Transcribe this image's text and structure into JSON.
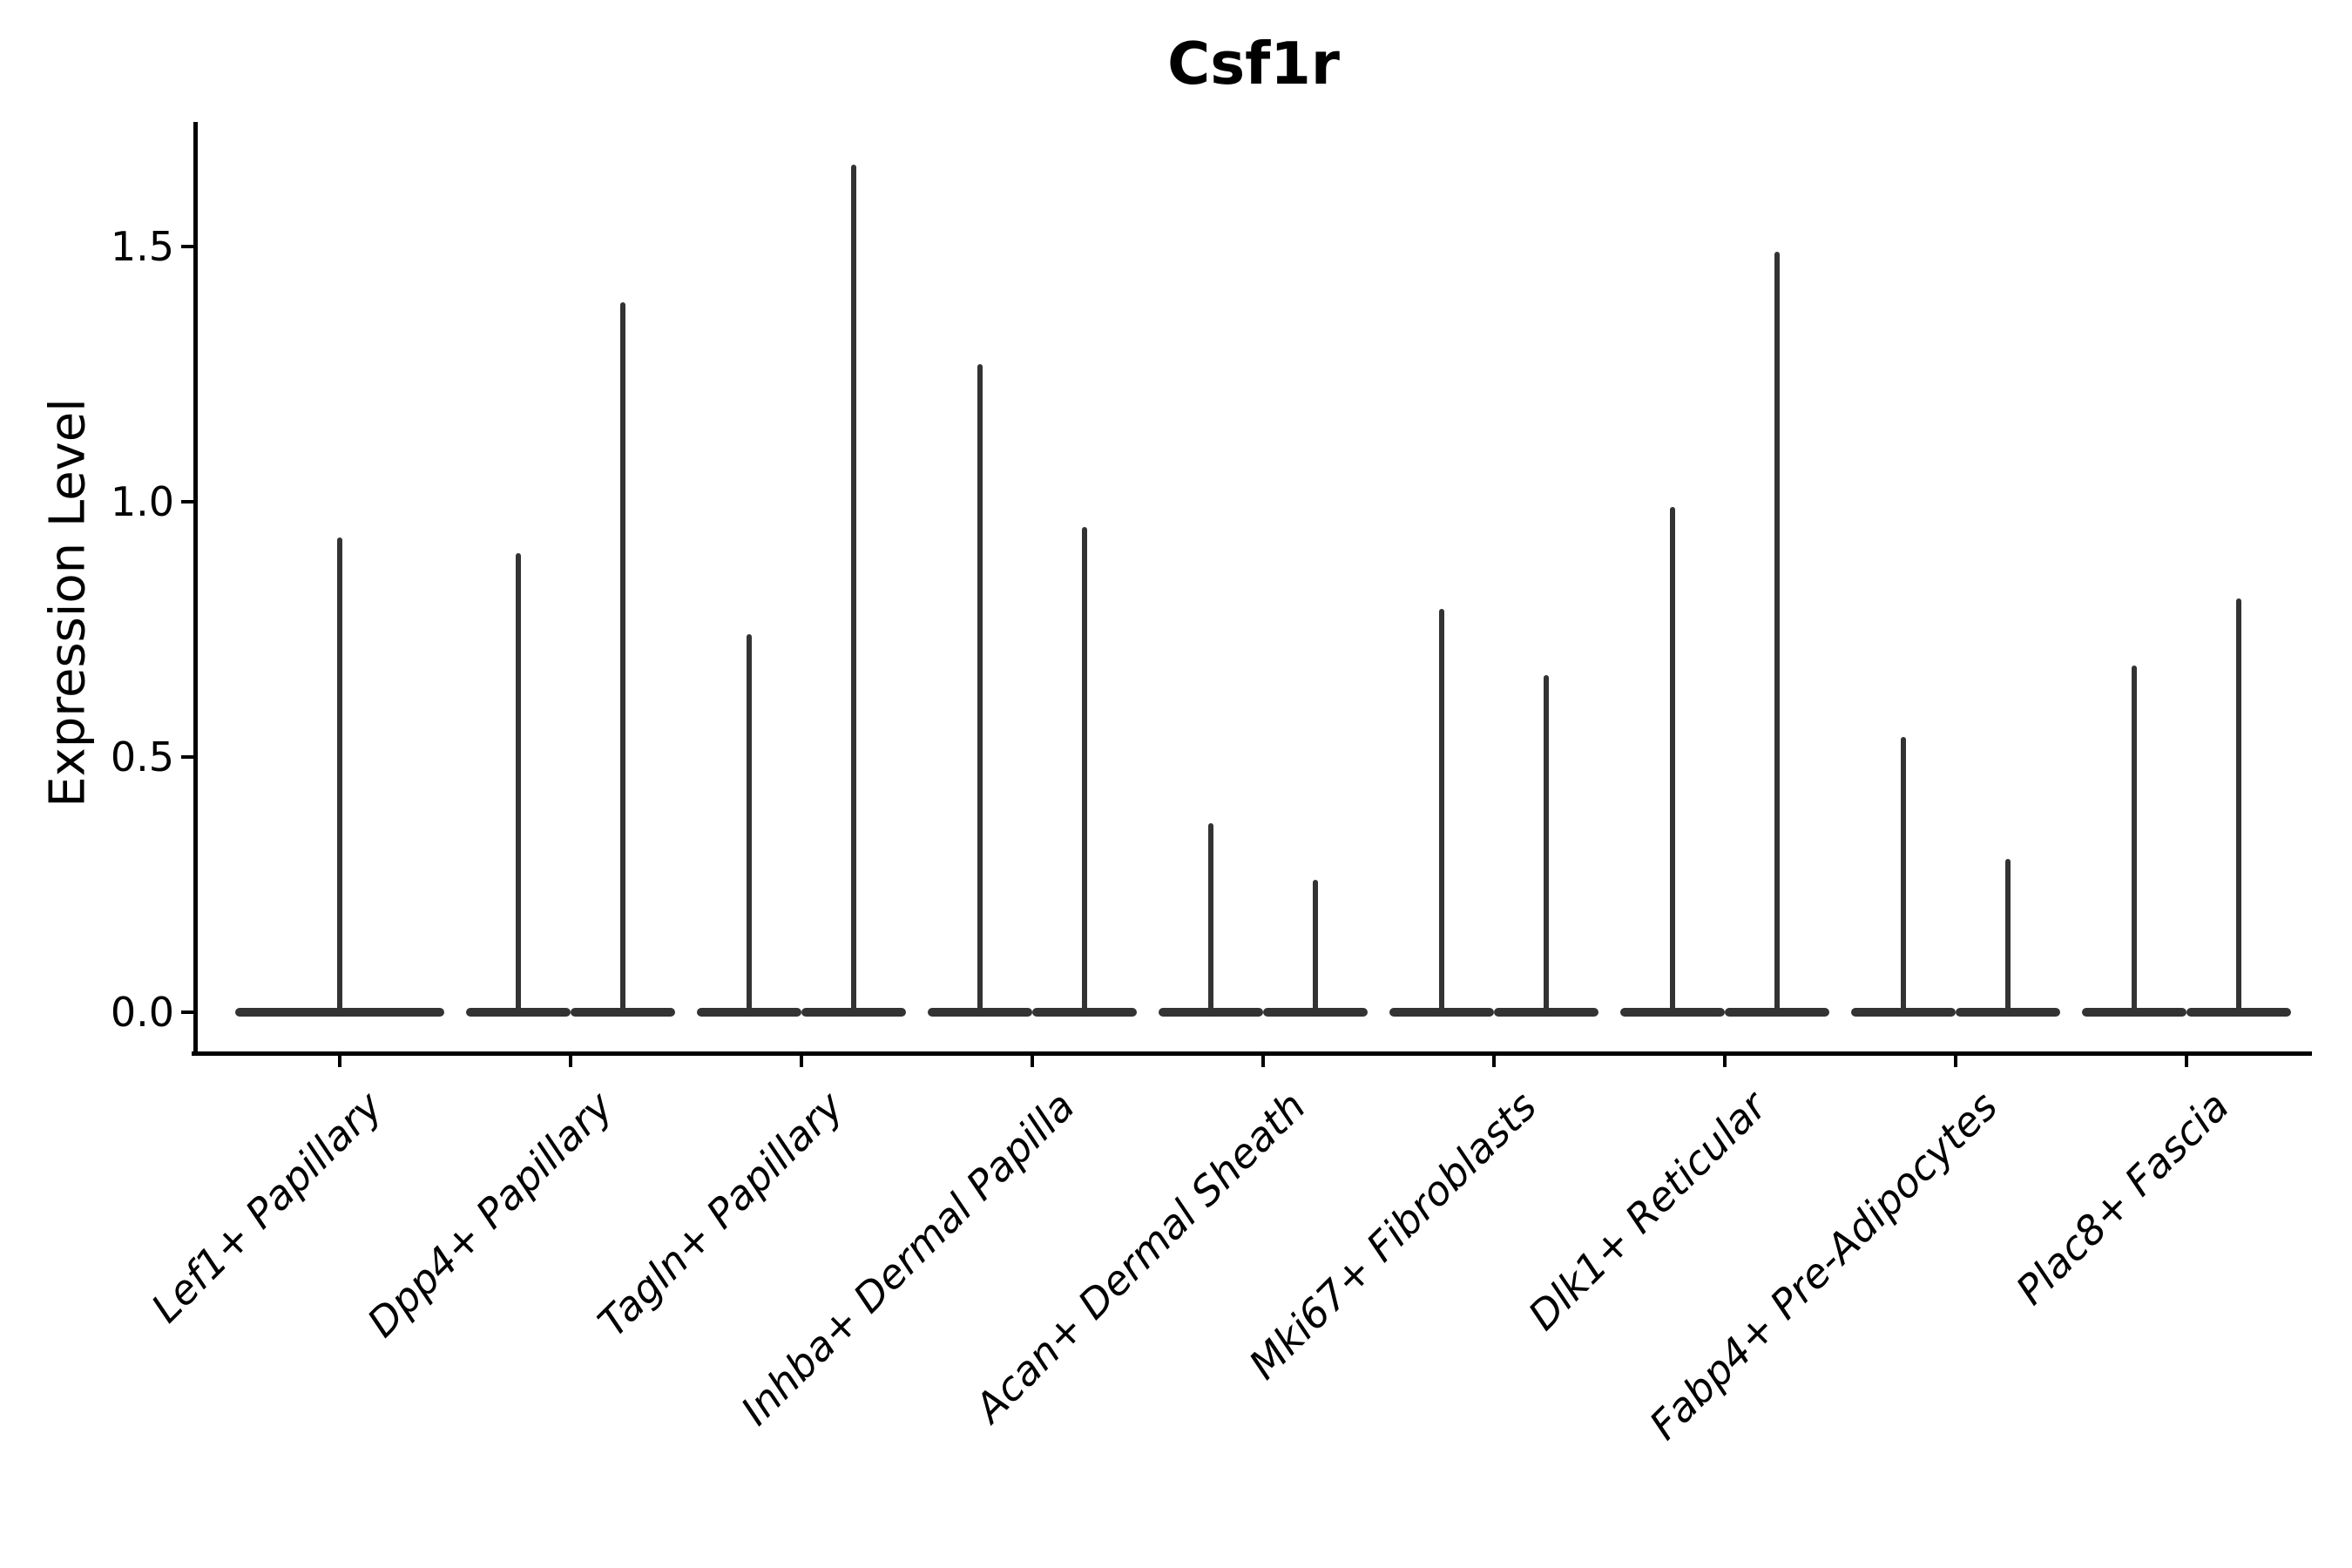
{
  "chart_data": {
    "type": "violin",
    "title": "Csf1r",
    "xlabel": "",
    "ylabel": "Expression Level",
    "ylim": [
      -0.08,
      1.74
    ],
    "yticks": [
      0.0,
      0.5,
      1.0,
      1.5
    ],
    "ytick_labels": [
      "0.0",
      "0.5",
      "1.0",
      "1.5"
    ],
    "grid": false,
    "legend": null,
    "note": "Zero-inflated single-cell expression distributions: each violin renders as a wide flat base at 0 with a thin vertical spike reaching its maximum expression value. Categories 2-9 contain two side-by-side (dodged) violins; category 1 has a single full-width centered violin.",
    "categories": [
      {
        "label": "Lef1+ Papillary",
        "violin_max": [
          0.93
        ]
      },
      {
        "label": "Dpp4+ Papillary",
        "violin_max": [
          0.9,
          1.39
        ]
      },
      {
        "label": "Tagln+ Papillary",
        "violin_max": [
          0.74,
          1.66
        ]
      },
      {
        "label": "Inhba+ Dermal Papilla",
        "violin_max": [
          1.27,
          0.95
        ]
      },
      {
        "label": "Acan+ Dermal Sheath",
        "violin_max": [
          0.37,
          0.26
        ]
      },
      {
        "label": "Mki67+ Fibroblasts",
        "violin_max": [
          0.79,
          0.66
        ]
      },
      {
        "label": "Dlk1+ Reticular",
        "violin_max": [
          0.99,
          1.49
        ]
      },
      {
        "label": "Fabp4+ Pre-Adipocytes",
        "violin_max": [
          0.54,
          0.3
        ]
      },
      {
        "label": "Plac8+ Fascia",
        "violin_max": [
          0.68,
          0.81
        ]
      }
    ],
    "colors": {
      "violin": "#333333",
      "axis": "#000000",
      "text": "#000000",
      "background": "#ffffff"
    }
  }
}
